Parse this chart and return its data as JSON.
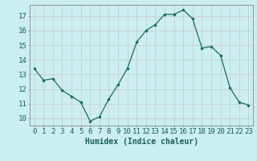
{
  "x": [
    0,
    1,
    2,
    3,
    4,
    5,
    6,
    7,
    8,
    9,
    10,
    11,
    12,
    13,
    14,
    15,
    16,
    17,
    18,
    19,
    20,
    21,
    22,
    23
  ],
  "y": [
    13.4,
    12.6,
    12.7,
    11.9,
    11.5,
    11.1,
    9.8,
    10.1,
    11.3,
    12.3,
    13.4,
    15.2,
    16.0,
    16.4,
    17.1,
    17.1,
    17.4,
    16.8,
    14.8,
    14.9,
    14.3,
    12.1,
    11.1,
    10.9
  ],
  "xlabel": "Humidex (Indice chaleur)",
  "xlim": [
    -0.5,
    23.5
  ],
  "ylim": [
    9.5,
    17.75
  ],
  "yticks": [
    10,
    11,
    12,
    13,
    14,
    15,
    16,
    17
  ],
  "xticks": [
    0,
    1,
    2,
    3,
    4,
    5,
    6,
    7,
    8,
    9,
    10,
    11,
    12,
    13,
    14,
    15,
    16,
    17,
    18,
    19,
    20,
    21,
    22,
    23
  ],
  "line_color": "#1a6b5a",
  "marker": "D",
  "marker_size": 1.8,
  "bg_color": "#cceeee",
  "grid_color": "#c8c8c8",
  "tick_label_color": "#1a5f5a",
  "xlabel_color": "#1a5f5a",
  "xlabel_fontsize": 7,
  "tick_fontsize": 6.5
}
